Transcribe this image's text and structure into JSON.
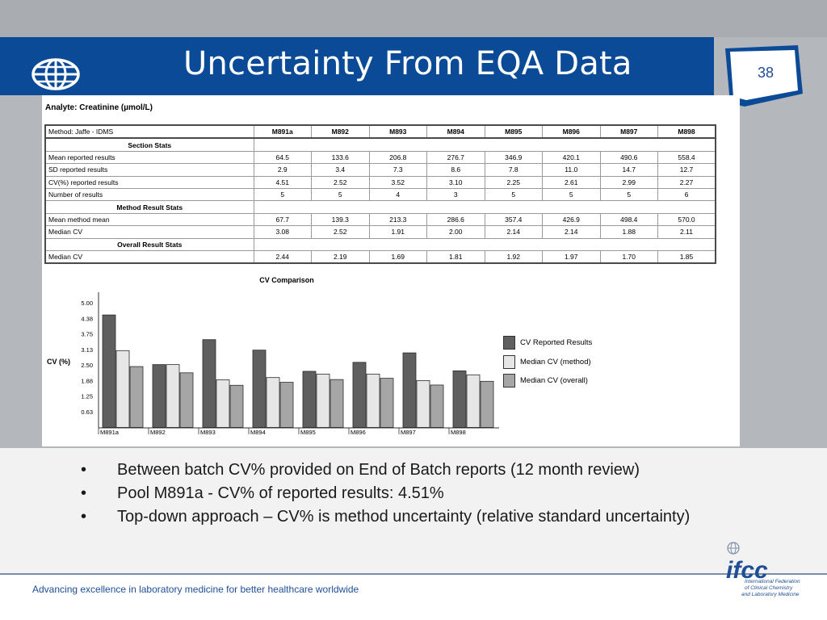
{
  "slide": {
    "title": "Uncertainty From EQA Data",
    "page_number": "38",
    "footer": "Advancing excellence in laboratory medicine for better healthcare worldwide",
    "logo_text": "ifcc",
    "logo_lines": [
      "International Federation",
      "of Clinical Chemistry",
      "and Laboratory Medicine"
    ],
    "colors": {
      "band": "#0a4a96",
      "accent": "#1f4e96"
    }
  },
  "report": {
    "analyte": "Analyte: Creatinine (µmol/L)",
    "method": "Method: Jaffe - IDMS",
    "pools": [
      "M891a",
      "M892",
      "M893",
      "M894",
      "M895",
      "M896",
      "M897",
      "M898"
    ],
    "sections": [
      {
        "title": "Section Stats",
        "rows": [
          {
            "label": "Mean reported results",
            "values": [
              "64.5",
              "133.6",
              "206.8",
              "276.7",
              "346.9",
              "420.1",
              "490.6",
              "558.4"
            ]
          },
          {
            "label": "SD reported results",
            "values": [
              "2.9",
              "3.4",
              "7.3",
              "8.6",
              "7.8",
              "11.0",
              "14.7",
              "12.7"
            ]
          },
          {
            "label": "CV(%) reported results",
            "values": [
              "4.51",
              "2.52",
              "3.52",
              "3.10",
              "2.25",
              "2.61",
              "2.99",
              "2.27"
            ]
          },
          {
            "label": "Number of results",
            "values": [
              "5",
              "5",
              "4",
              "3",
              "5",
              "5",
              "5",
              "6"
            ]
          }
        ]
      },
      {
        "title": "Method Result Stats",
        "rows": [
          {
            "label": "Mean method mean",
            "values": [
              "67.7",
              "139.3",
              "213.3",
              "286.6",
              "357.4",
              "426.9",
              "498.4",
              "570.0"
            ]
          },
          {
            "label": "Median CV",
            "values": [
              "3.08",
              "2.52",
              "1.91",
              "2.00",
              "2.14",
              "2.14",
              "1.88",
              "2.11"
            ]
          }
        ]
      },
      {
        "title": "Overall Result Stats",
        "rows": [
          {
            "label": "Median CV",
            "values": [
              "2.44",
              "2.19",
              "1.69",
              "1.81",
              "1.92",
              "1.97",
              "1.70",
              "1.85"
            ]
          }
        ]
      }
    ]
  },
  "chart_data": {
    "type": "bar",
    "title": "CV Comparison",
    "ylabel": "CV (%)",
    "xlabel": "",
    "categories": [
      "M891a",
      "M892",
      "M893",
      "M894",
      "M895",
      "M896",
      "M897",
      "M898"
    ],
    "yticks": [
      "5.00",
      "4.38",
      "3.75",
      "3.13",
      "2.50",
      "1.88",
      "1.25",
      "0.63"
    ],
    "ylim": [
      0,
      5.0
    ],
    "grid": false,
    "legend_position": "right",
    "series": [
      {
        "name": "CV Reported Results",
        "color": "#5f5f5f",
        "values": [
          4.51,
          2.52,
          3.52,
          3.1,
          2.25,
          2.61,
          2.99,
          2.27
        ]
      },
      {
        "name": "Median CV (method)",
        "color": "#e6e6e6",
        "values": [
          3.08,
          2.52,
          1.91,
          2.0,
          2.14,
          2.14,
          1.88,
          2.11
        ]
      },
      {
        "name": "Median CV (overall)",
        "color": "#a6a6a6",
        "values": [
          2.44,
          2.19,
          1.69,
          1.81,
          1.92,
          1.97,
          1.7,
          1.85
        ]
      }
    ]
  },
  "bullets": [
    "Between batch CV% provided on End of Batch reports (12 month review)",
    "Pool M891a - CV% of reported results: 4.51%",
    "Top-down approach – CV% is method uncertainty (relative standard uncertainty)"
  ]
}
